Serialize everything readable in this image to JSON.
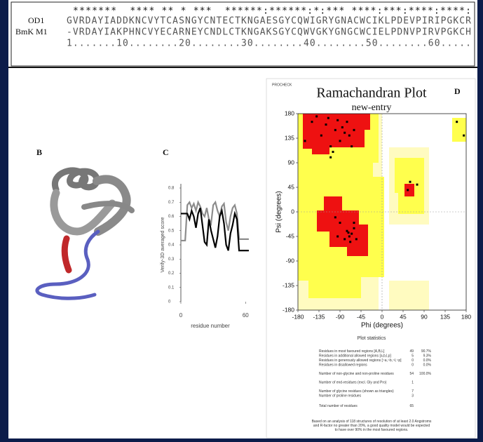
{
  "alignment": {
    "conservation": " *******  **** ** * ***  ******:******:*:*** ****:***:****:****:",
    "rows": [
      {
        "name": "OD1",
        "sequence": "GVRDAYIADDKNCVYTCASNGYCNTECTKNGAESGYCQWIGRYGNACWCIKLPDEVPIRIPGKCR"
      },
      {
        "name": "BmK M1",
        "sequence": "-VRDAYIAKPHNCVYECARNEYCNDLCTKNGAKSGYCQWVGKYGNGCWCIELPDNVPIRVPGKCH"
      }
    ],
    "ruler": "1.......10........20........30........40........50........60....."
  },
  "panel_labels": {
    "b": "B",
    "c": "C",
    "d": "D"
  },
  "chart_data": [
    {
      "type": "line",
      "y_label": "Verify-3D averaged score",
      "x_label": "residue number",
      "xlim": [
        0,
        65
      ],
      "xticks": [
        0,
        60
      ],
      "ylim": [
        0,
        0.8
      ],
      "yticks": [
        0,
        0.1,
        0.2,
        0.3,
        0.4,
        0.5,
        0.6,
        0.7,
        0.8
      ],
      "x": [
        0,
        2,
        4,
        6,
        8,
        10,
        12,
        14,
        16,
        18,
        20,
        22,
        24,
        26,
        28,
        30,
        32,
        34,
        36,
        38,
        40,
        42,
        44,
        46,
        48,
        50,
        52,
        54,
        56,
        58,
        60,
        63
      ],
      "series": [
        {
          "color": "#8c8c8c",
          "values": [
            0.43,
            0.43,
            0.43,
            0.68,
            0.7,
            0.66,
            0.69,
            0.64,
            0.7,
            0.67,
            0.62,
            0.6,
            0.66,
            0.58,
            0.55,
            0.68,
            0.7,
            0.64,
            0.6,
            0.67,
            0.69,
            0.56,
            0.5,
            0.6,
            0.66,
            0.68,
            0.62,
            0.44,
            0.44,
            0.44,
            0.44,
            0.44
          ]
        },
        {
          "color": "#000000",
          "values": [
            0.62,
            0.62,
            0.62,
            0.62,
            0.58,
            0.64,
            0.6,
            0.52,
            0.62,
            0.66,
            0.54,
            0.42,
            0.4,
            0.58,
            0.5,
            0.44,
            0.38,
            0.46,
            0.6,
            0.64,
            0.55,
            0.4,
            0.36,
            0.48,
            0.54,
            0.62,
            0.58,
            0.36,
            0.36,
            0.36,
            0.36,
            0.36
          ]
        }
      ]
    },
    {
      "type": "scatter",
      "header": "PROCHECK",
      "title": "Ramachandran Plot",
      "subtitle": "new-entry",
      "x_label": "Phi (degrees)",
      "y_label": "Psi (degrees)",
      "xlim": [
        -180,
        180
      ],
      "xticks": [
        -180,
        -135,
        -90,
        -45,
        0,
        45,
        90,
        135,
        180
      ],
      "ylim": [
        -180,
        180
      ],
      "yticks": [
        -180,
        -135,
        -90,
        -45,
        0,
        45,
        90,
        135,
        180
      ],
      "color": "#000000",
      "x": [
        -150,
        -140,
        -130,
        -120,
        -110,
        -100,
        -95,
        -90,
        -85,
        -80,
        -75,
        -70,
        -65,
        -60,
        -115,
        -105,
        -65,
        -60,
        -70,
        -75,
        -90,
        -55,
        -80,
        -95,
        -60,
        -100,
        -68,
        -72,
        55,
        75,
        60,
        160,
        175,
        -165,
        -110
      ],
      "values": [
        165,
        175,
        140,
        160,
        120,
        150,
        168,
        130,
        155,
        145,
        165,
        140,
        120,
        150,
        172,
        110,
        -40,
        -30,
        -45,
        -35,
        -20,
        -50,
        -50,
        -45,
        -20,
        -10,
        -55,
        -38,
        40,
        50,
        55,
        165,
        140,
        130,
        100
      ]
    }
  ],
  "statistics": {
    "heading": "Plot statistics",
    "rows": [
      {
        "label": "Residues in most favoured regions [A,B,L]",
        "count": 49,
        "percent": "90.7%"
      },
      {
        "label": "Residues in additional allowed regions [a,b,l,p]",
        "count": 5,
        "percent": "9.3%"
      },
      {
        "label": "Residues in generously allowed regions [~a,~b,~l,~p]",
        "count": 0,
        "percent": "0.0%"
      },
      {
        "label": "Residues in disallowed regions",
        "count": 0,
        "percent": "0.0%"
      },
      {
        "label": "Number of non-glycine and non-proline residues",
        "count": 54,
        "percent": "100.0%"
      },
      {
        "label": "Number of end-residues (excl. Gly and Pro)",
        "count": 1
      },
      {
        "label": "Number of glycine residues (shown as triangles)",
        "count": 7
      },
      {
        "label": "Number of proline residues",
        "count": 3
      },
      {
        "label": "Total number of residues",
        "count": 65
      }
    ],
    "note": [
      "Based on an analysis of 118 structures of resolution of at least 2.0 Angstroms",
      "and R-factor no greater than 20%, a good quality model would be expected",
      "to have over 90% in the most favoured regions."
    ]
  }
}
